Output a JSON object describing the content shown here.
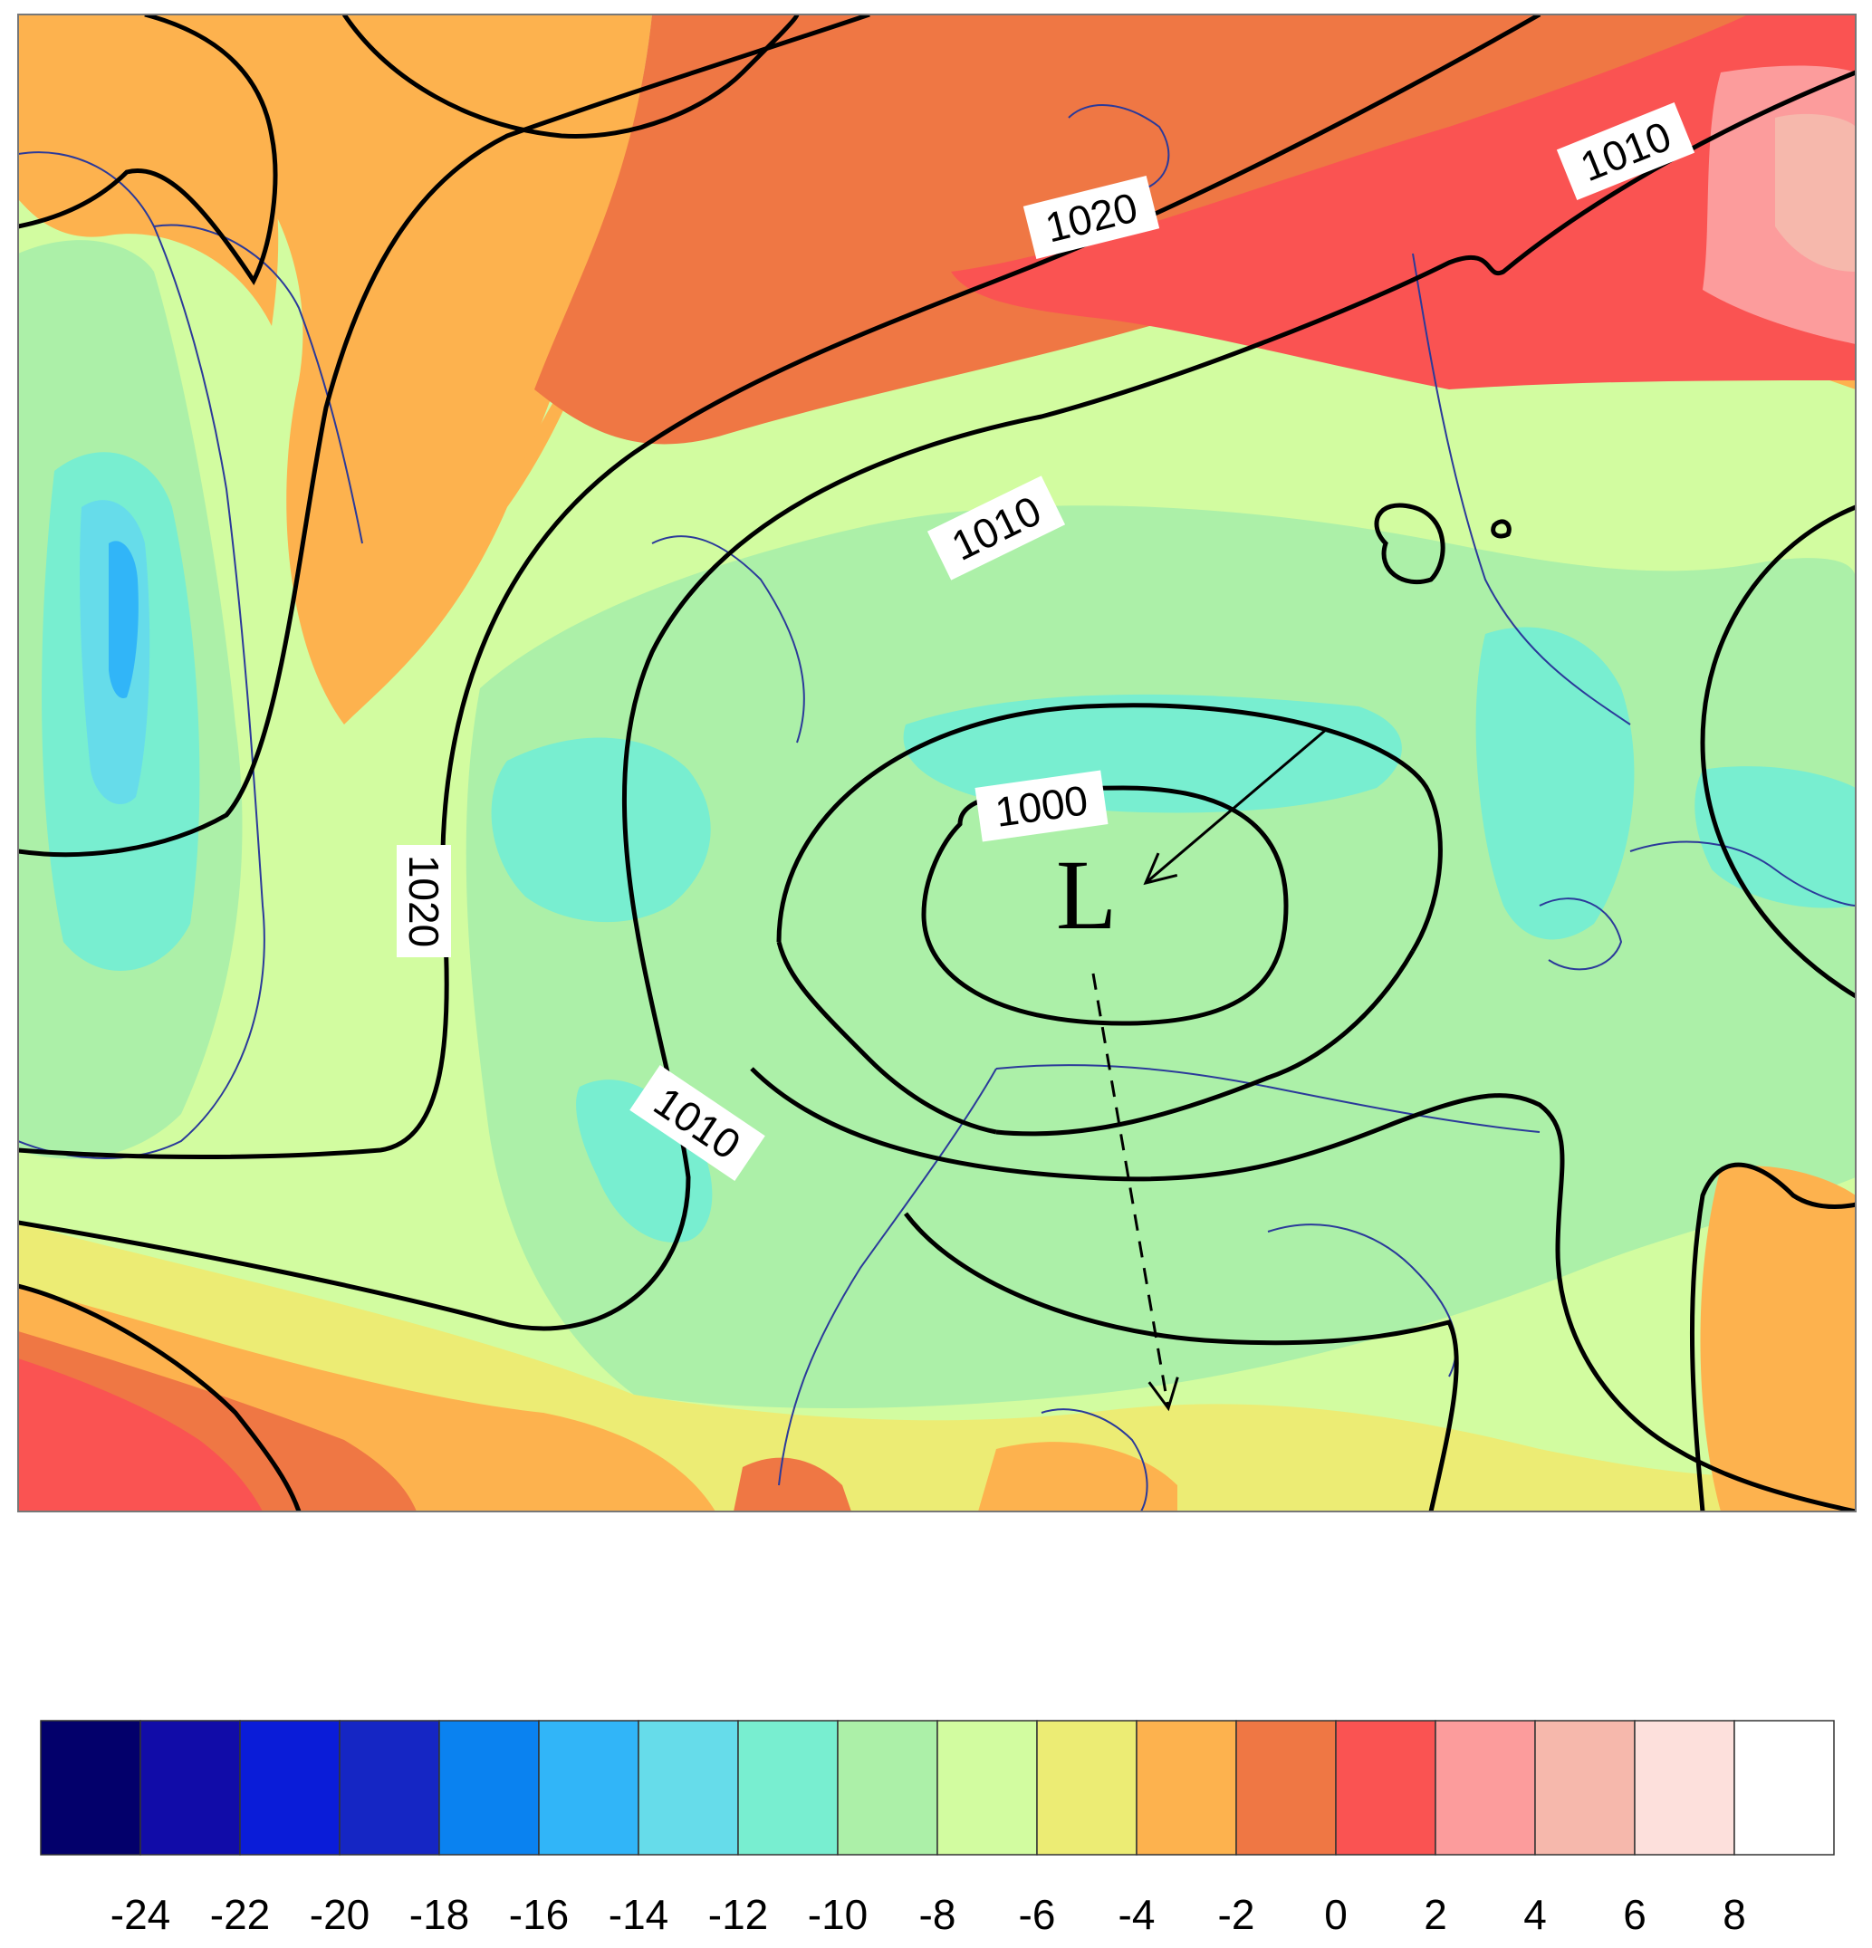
{
  "map": {
    "isobar_labels": [
      "1020",
      "1010",
      "1020",
      "1010",
      "1000",
      "1010"
    ],
    "low_marker": "L",
    "isobar_color": "#000000",
    "coastline_color": "#2b3a9a"
  },
  "colorbar": {
    "ticks": [
      "-24",
      "-22",
      "-20",
      "-18",
      "-16",
      "-14",
      "-12",
      "-10",
      "-8",
      "-6",
      "-4",
      "-2",
      "0",
      "2",
      "4",
      "6",
      "8"
    ],
    "colors": [
      "#03006b",
      "#110ca8",
      "#0a1cd8",
      "#1526c4",
      "#0a82f0",
      "#31b5f8",
      "#66dcea",
      "#78eed0",
      "#acf0a8",
      "#d2fca0",
      "#ecec74",
      "#fdb24e",
      "#ef7744",
      "#fa5352",
      "#fc9c9c",
      "#f6b8ac",
      "#fde0dc",
      "#ffffff"
    ]
  }
}
